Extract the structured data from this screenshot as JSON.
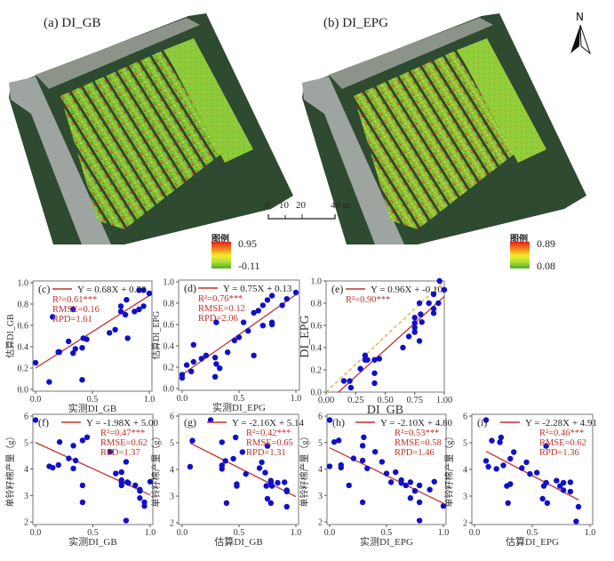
{
  "maps": [
    {
      "label": "(a) DI_GB",
      "legend_title": "图例",
      "legend_max": "0.95",
      "legend_min": "-0.11"
    },
    {
      "label": "(b) DI_EPG",
      "legend_title": "图例",
      "legend_max": "0.89",
      "legend_min": "0.08"
    }
  ],
  "north_arrow": {
    "label": "N",
    "icon": "north-arrow-icon"
  },
  "scale_bar": {
    "ticks": [
      "0",
      "10",
      "20",
      "40 m"
    ],
    "values": [
      0,
      10,
      20,
      40
    ]
  },
  "colors": {
    "point": "#1010c8",
    "fit_line": "#c0302a",
    "stats_text": "#c0302a",
    "one_to_one": "#e0a030",
    "legend_high": "#e8201a",
    "legend_low": "#4fae26"
  },
  "chart_data": [
    {
      "id": "c",
      "type": "scatter",
      "panel_label": "(c)",
      "xlabel": "实测DI_GB",
      "ylabel": "估算DI_GB",
      "xlim": [
        0,
        1.0
      ],
      "ylim": [
        0,
        1.0
      ],
      "xticks": [
        "0.0",
        "0.5",
        "1.0"
      ],
      "xtick_values": [
        0,
        0.5,
        1.0
      ],
      "yticks": [
        "0.0",
        "0.2",
        "0.4",
        "0.6",
        "0.8",
        "1.0"
      ],
      "ytick_values": [
        0,
        0.2,
        0.4,
        0.6,
        0.8,
        1.0
      ],
      "legend": "Y = 0.68X + 0.20",
      "fit": {
        "slope": 0.68,
        "intercept": 0.2,
        "x_range": [
          0,
          1.0
        ]
      },
      "stats": [
        "R²=0.61***",
        "RMSE=0.16",
        "RPD=1.61"
      ],
      "points": [
        [
          0.0,
          0.25
        ],
        [
          0.12,
          0.07
        ],
        [
          0.15,
          0.68
        ],
        [
          0.2,
          0.35
        ],
        [
          0.21,
          0.35
        ],
        [
          0.29,
          0.45
        ],
        [
          0.33,
          0.34
        ],
        [
          0.33,
          0.75
        ],
        [
          0.35,
          0.38
        ],
        [
          0.41,
          0.39
        ],
        [
          0.41,
          0.09
        ],
        [
          0.42,
          0.48
        ],
        [
          0.45,
          0.47
        ],
        [
          0.65,
          0.53
        ],
        [
          0.7,
          0.56
        ],
        [
          0.75,
          0.73
        ],
        [
          0.75,
          0.78
        ],
        [
          0.79,
          0.7
        ],
        [
          0.8,
          0.84
        ],
        [
          0.81,
          0.48
        ],
        [
          0.87,
          0.73
        ],
        [
          0.91,
          0.75
        ],
        [
          0.91,
          0.93
        ],
        [
          0.95,
          0.78
        ],
        [
          0.95,
          0.93
        ],
        [
          1.0,
          0.9
        ]
      ]
    },
    {
      "id": "d",
      "type": "scatter",
      "panel_label": "(d)",
      "xlabel": "实测DI_EPG",
      "ylabel": "估算DI_EPG",
      "xlim": [
        0,
        1.0
      ],
      "ylim": [
        0,
        1.0
      ],
      "xticks": [
        "0.0",
        "0.5",
        "1.0"
      ],
      "xtick_values": [
        0,
        0.5,
        1.0
      ],
      "yticks": [
        "0.0",
        "0.2",
        "0.4",
        "0.6",
        "0.8",
        "1.0"
      ],
      "ytick_values": [
        0,
        0.2,
        0.4,
        0.6,
        0.8,
        1.0
      ],
      "legend": "Y = 0.75X + 0.13",
      "fit": {
        "slope": 0.75,
        "intercept": 0.13,
        "x_range": [
          0,
          1.0
        ]
      },
      "stats": [
        "R²=0.76***",
        "RMSE=0.12",
        "RPD=2.06"
      ],
      "points": [
        [
          0.0,
          0.1
        ],
        [
          0.0,
          0.13
        ],
        [
          0.04,
          0.22
        ],
        [
          0.08,
          0.16
        ],
        [
          0.1,
          0.25
        ],
        [
          0.1,
          0.41
        ],
        [
          0.17,
          0.28
        ],
        [
          0.21,
          0.31
        ],
        [
          0.29,
          0.11
        ],
        [
          0.29,
          0.29
        ],
        [
          0.3,
          0.23
        ],
        [
          0.3,
          0.62
        ],
        [
          0.33,
          0.19
        ],
        [
          0.4,
          0.34
        ],
        [
          0.46,
          0.45
        ],
        [
          0.5,
          0.48
        ],
        [
          0.54,
          0.62
        ],
        [
          0.58,
          0.54
        ],
        [
          0.63,
          0.31
        ],
        [
          0.63,
          0.71
        ],
        [
          0.67,
          0.73
        ],
        [
          0.71,
          0.78
        ],
        [
          0.71,
          0.59
        ],
        [
          0.75,
          0.83
        ],
        [
          0.79,
          0.6
        ],
        [
          0.79,
          0.62
        ],
        [
          0.79,
          0.87
        ],
        [
          0.88,
          0.78
        ],
        [
          0.92,
          0.84
        ],
        [
          1.0,
          0.9
        ]
      ]
    },
    {
      "id": "e",
      "type": "scatter",
      "panel_label": "(e)",
      "xlabel": "DI_GB",
      "ylabel": "DI_EPG",
      "xlim": [
        0,
        1.0
      ],
      "ylim": [
        0,
        1.0
      ],
      "xticks": [
        "0.00",
        "0.25",
        "0.50",
        "0.75",
        "1.00"
      ],
      "xtick_values": [
        0,
        0.25,
        0.5,
        0.75,
        1.0
      ],
      "yticks": [
        "0.0",
        "0.2",
        "0.4",
        "0.6",
        "0.8",
        "1.0"
      ],
      "ytick_values": [
        0,
        0.2,
        0.4,
        0.6,
        0.8,
        1.0
      ],
      "legend": "Y = 0.96X + -0.10",
      "fit": {
        "slope": 0.96,
        "intercept": -0.1,
        "x_range": [
          0.1,
          1.0
        ]
      },
      "one_to_one": true,
      "stats": [
        "R²=0.90***"
      ],
      "points": [
        [
          0.15,
          0.1
        ],
        [
          0.2,
          0.1
        ],
        [
          0.21,
          0.04
        ],
        [
          0.29,
          0.21
        ],
        [
          0.33,
          0.33
        ],
        [
          0.33,
          0.29
        ],
        [
          0.35,
          0.29
        ],
        [
          0.41,
          0.29
        ],
        [
          0.41,
          0.17
        ],
        [
          0.41,
          0.08
        ],
        [
          0.45,
          0.3
        ],
        [
          0.65,
          0.4
        ],
        [
          0.7,
          0.5
        ],
        [
          0.75,
          0.67
        ],
        [
          0.75,
          0.62
        ],
        [
          0.75,
          0.58
        ],
        [
          0.75,
          0.54
        ],
        [
          0.79,
          0.46
        ],
        [
          0.79,
          0.8
        ],
        [
          0.8,
          0.7
        ],
        [
          0.81,
          0.63
        ],
        [
          0.87,
          0.8
        ],
        [
          0.91,
          0.88
        ],
        [
          0.91,
          0.75
        ],
        [
          0.91,
          0.71
        ],
        [
          0.95,
          0.8
        ],
        [
          0.96,
          1.0
        ],
        [
          1.0,
          0.92
        ]
      ]
    },
    {
      "id": "f",
      "type": "scatter",
      "panel_label": "(f)",
      "xlabel": "实测DI_GB",
      "ylabel": "单铃籽棉产量（g）",
      "xlim": [
        0,
        1.0
      ],
      "ylim": [
        2,
        6
      ],
      "xticks": [
        "0.0",
        "0.5",
        "1.0"
      ],
      "xtick_values": [
        0,
        0.5,
        1.0
      ],
      "yticks": [
        "2",
        "3",
        "4",
        "5",
        "6"
      ],
      "ytick_values": [
        2,
        3,
        4,
        5,
        6
      ],
      "legend": "Y = -1.98X + 5.00",
      "fit": {
        "slope": -1.98,
        "intercept": 5.0,
        "x_range": [
          0,
          1.0
        ]
      },
      "stats": [
        "R²=0.47***",
        "RMSE=0.62",
        "RPD=1.37"
      ],
      "points": [
        [
          0.0,
          5.85
        ],
        [
          0.12,
          4.1
        ],
        [
          0.15,
          4.05
        ],
        [
          0.2,
          4.15
        ],
        [
          0.21,
          5.02
        ],
        [
          0.29,
          4.4
        ],
        [
          0.33,
          4.88
        ],
        [
          0.33,
          4.02
        ],
        [
          0.35,
          4.32
        ],
        [
          0.41,
          5.08
        ],
        [
          0.41,
          3.38
        ],
        [
          0.41,
          2.74
        ],
        [
          0.45,
          5.2
        ],
        [
          0.65,
          4.65
        ],
        [
          0.7,
          3.83
        ],
        [
          0.75,
          3.88
        ],
        [
          0.75,
          3.58
        ],
        [
          0.75,
          3.5
        ],
        [
          0.75,
          3.38
        ],
        [
          0.79,
          4.27
        ],
        [
          0.79,
          2.05
        ],
        [
          0.8,
          3.5
        ],
        [
          0.81,
          3.47
        ],
        [
          0.87,
          3.38
        ],
        [
          0.91,
          3.22
        ],
        [
          0.91,
          3.17
        ],
        [
          0.91,
          2.9
        ],
        [
          0.95,
          2.74
        ],
        [
          0.95,
          2.6
        ],
        [
          1.0,
          3.52
        ]
      ]
    },
    {
      "id": "g",
      "type": "scatter",
      "panel_label": "(g)",
      "xlabel": "估算DI_GB",
      "ylabel": "单铃籽棉产量（g）",
      "xlim": [
        0,
        1.0
      ],
      "ylim": [
        2,
        6
      ],
      "xticks": [
        "0.0",
        "0.5",
        "1.0"
      ],
      "xtick_values": [
        0,
        0.5,
        1.0
      ],
      "yticks": [
        "2",
        "3",
        "4",
        "5",
        "6"
      ],
      "ytick_values": [
        2,
        3,
        4,
        5,
        6
      ],
      "legend": "Y = -2.16X + 5.14",
      "fit": {
        "slope": -2.16,
        "intercept": 5.14,
        "x_range": [
          0.07,
          1.0
        ]
      },
      "stats": [
        "R²=0.42***",
        "RMSE=0.65",
        "RPD=1.31"
      ],
      "points": [
        [
          0.07,
          4.1
        ],
        [
          0.09,
          5.08
        ],
        [
          0.25,
          5.85
        ],
        [
          0.35,
          5.02
        ],
        [
          0.35,
          4.15
        ],
        [
          0.35,
          4.02
        ],
        [
          0.38,
          4.32
        ],
        [
          0.39,
          2.74
        ],
        [
          0.45,
          4.4
        ],
        [
          0.47,
          5.2
        ],
        [
          0.48,
          3.45
        ],
        [
          0.48,
          3.38
        ],
        [
          0.53,
          4.65
        ],
        [
          0.56,
          3.83
        ],
        [
          0.68,
          4.05
        ],
        [
          0.7,
          4.27
        ],
        [
          0.73,
          3.88
        ],
        [
          0.74,
          3.38
        ],
        [
          0.75,
          2.9
        ],
        [
          0.75,
          4.88
        ],
        [
          0.78,
          3.58
        ],
        [
          0.78,
          3.5
        ],
        [
          0.78,
          2.74
        ],
        [
          0.79,
          3.38
        ],
        [
          0.84,
          3.5
        ],
        [
          0.9,
          3.52
        ],
        [
          0.92,
          3.22
        ],
        [
          0.92,
          3.17
        ],
        [
          0.92,
          2.6
        ]
      ]
    },
    {
      "id": "h",
      "type": "scatter",
      "panel_label": "(h)",
      "xlabel": "实测DI_EPG",
      "ylabel": "单铃籽棉产量（g）",
      "xlim": [
        0,
        1.0
      ],
      "ylim": [
        2,
        6
      ],
      "xticks": [
        "0.0",
        "0.5",
        "1.0"
      ],
      "xtick_values": [
        0,
        0.5,
        1.0
      ],
      "yticks": [
        "2",
        "3",
        "4",
        "5",
        "6"
      ],
      "ytick_values": [
        2,
        3,
        4,
        5,
        6
      ],
      "legend": "Y = -2.10X + 4.80",
      "fit": {
        "slope": -2.1,
        "intercept": 4.8,
        "x_range": [
          0,
          1.0
        ]
      },
      "stats": [
        "R²=0.53***",
        "RMSE=0.58",
        "RPD=1.46"
      ],
      "points": [
        [
          0.0,
          5.85
        ],
        [
          0.0,
          4.1
        ],
        [
          0.04,
          5.02
        ],
        [
          0.08,
          5.08
        ],
        [
          0.1,
          4.15
        ],
        [
          0.1,
          4.05
        ],
        [
          0.17,
          3.38
        ],
        [
          0.21,
          4.4
        ],
        [
          0.29,
          4.88
        ],
        [
          0.29,
          4.32
        ],
        [
          0.29,
          2.74
        ],
        [
          0.3,
          5.2
        ],
        [
          0.33,
          4.02
        ],
        [
          0.4,
          4.65
        ],
        [
          0.46,
          4.27
        ],
        [
          0.5,
          3.83
        ],
        [
          0.54,
          3.5
        ],
        [
          0.58,
          3.88
        ],
        [
          0.63,
          3.58
        ],
        [
          0.63,
          3.47
        ],
        [
          0.67,
          3.38
        ],
        [
          0.71,
          3.5
        ],
        [
          0.71,
          2.9
        ],
        [
          0.75,
          3.17
        ],
        [
          0.79,
          3.38
        ],
        [
          0.79,
          2.74
        ],
        [
          0.79,
          2.05
        ],
        [
          0.88,
          3.22
        ],
        [
          0.92,
          3.52
        ],
        [
          1.0,
          2.6
        ]
      ]
    },
    {
      "id": "i",
      "type": "scatter",
      "panel_label": "(i)",
      "xlabel": "估算DI_EPG",
      "ylabel": "单铃籽棉产量（g）",
      "xlim": [
        0,
        1.0
      ],
      "ylim": [
        2,
        6
      ],
      "xticks": [
        "0.0",
        "0.5",
        "1.0"
      ],
      "xtick_values": [
        0,
        0.5,
        1.0
      ],
      "yticks": [
        "2",
        "3",
        "4",
        "5",
        "6"
      ],
      "ytick_values": [
        2,
        3,
        4,
        5,
        6
      ],
      "legend": "Y = -2.28X + 4.91",
      "fit": {
        "slope": -2.28,
        "intercept": 4.91,
        "x_range": [
          0.1,
          0.9
        ]
      },
      "stats": [
        "R²=0.46***",
        "RMSE=0.62",
        "RPD=1.36"
      ],
      "points": [
        [
          0.1,
          5.85
        ],
        [
          0.1,
          4.32
        ],
        [
          0.12,
          4.1
        ],
        [
          0.15,
          5.08
        ],
        [
          0.19,
          4.02
        ],
        [
          0.22,
          5.02
        ],
        [
          0.23,
          5.2
        ],
        [
          0.25,
          4.15
        ],
        [
          0.28,
          3.38
        ],
        [
          0.29,
          2.74
        ],
        [
          0.31,
          4.4
        ],
        [
          0.31,
          3.45
        ],
        [
          0.34,
          4.65
        ],
        [
          0.41,
          4.05
        ],
        [
          0.45,
          4.27
        ],
        [
          0.48,
          3.83
        ],
        [
          0.54,
          3.88
        ],
        [
          0.59,
          2.9
        ],
        [
          0.6,
          3.38
        ],
        [
          0.62,
          3.5
        ],
        [
          0.62,
          4.88
        ],
        [
          0.63,
          2.74
        ],
        [
          0.71,
          3.58
        ],
        [
          0.74,
          3.38
        ],
        [
          0.77,
          3.5
        ],
        [
          0.77,
          3.22
        ],
        [
          0.83,
          3.52
        ],
        [
          0.83,
          3.17
        ],
        [
          0.88,
          2.05
        ],
        [
          0.9,
          2.6
        ]
      ]
    }
  ]
}
